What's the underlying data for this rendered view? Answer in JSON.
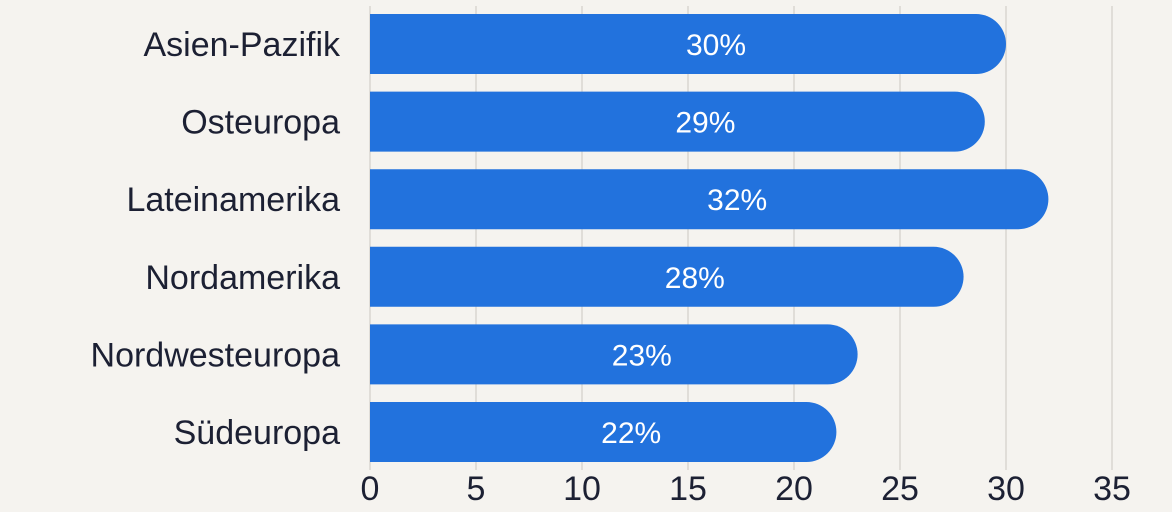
{
  "chart_data": {
    "type": "bar",
    "orientation": "horizontal",
    "categories": [
      "Asien-Pazifik",
      "Osteuropa",
      "Lateinamerika",
      "Nordamerika",
      "Nordwesteuropa",
      "Südeuropa"
    ],
    "values": [
      30,
      29,
      32,
      28,
      23,
      22
    ],
    "value_labels": [
      "30%",
      "29%",
      "32%",
      "28%",
      "23%",
      "22%"
    ],
    "xlim": [
      0,
      35
    ],
    "xticks": [
      "0",
      "5",
      "10",
      "15",
      "20",
      "25",
      "30",
      "35"
    ],
    "grid": true,
    "title": "",
    "xlabel": "",
    "ylabel": ""
  },
  "colors": {
    "background": "#f5f3ef",
    "bar": "#2272dd",
    "value_text": "#ffffff",
    "label_text": "#1c2033",
    "grid": "#d9d6d0"
  }
}
